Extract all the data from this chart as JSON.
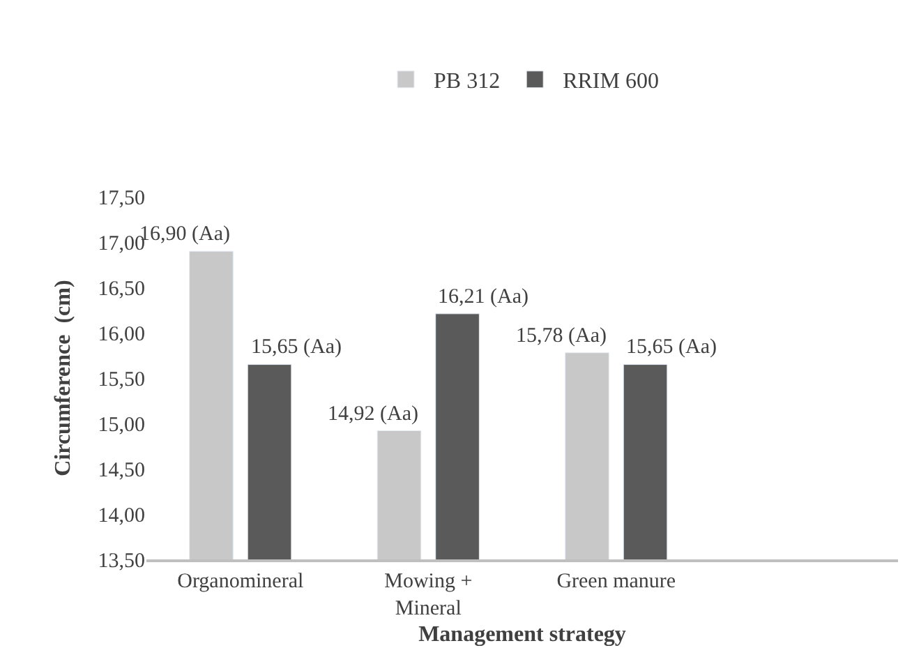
{
  "chart_data": {
    "type": "bar",
    "xlabel": "Management strategy",
    "ylabel": "Circumference  (cm)",
    "categories": [
      "Organomineral",
      "Mowing + Mineral",
      "Green manure",
      null
    ],
    "series": [
      {
        "name": "PB 312",
        "color": "#c8c8c8",
        "values": [
          16.9,
          14.92,
          15.78,
          null
        ],
        "value_labels": [
          "16,90 (Aa)",
          "14,92 (Aa)",
          "15,78 (Aa)",
          null
        ]
      },
      {
        "name": "RRIM 600",
        "color": "#5a5a5a",
        "values": [
          15.65,
          16.21,
          15.65,
          null
        ],
        "value_labels": [
          "15,65 (Aa)",
          "16,21 (Aa)",
          "15,65 (Aa)",
          null
        ]
      }
    ],
    "ylim": [
      13.5,
      17.5
    ],
    "yticks": [
      {
        "value": 13.5,
        "label": "13,50"
      },
      {
        "value": 14.0,
        "label": "14,00"
      },
      {
        "value": 14.5,
        "label": "14,50"
      },
      {
        "value": 15.0,
        "label": "15,00"
      },
      {
        "value": 15.5,
        "label": "15,50"
      },
      {
        "value": 16.0,
        "label": "16,00"
      },
      {
        "value": 16.5,
        "label": "16,50"
      },
      {
        "value": 17.0,
        "label": "17,00"
      },
      {
        "value": 17.5,
        "label": "17,50"
      }
    ],
    "legend": "top"
  }
}
